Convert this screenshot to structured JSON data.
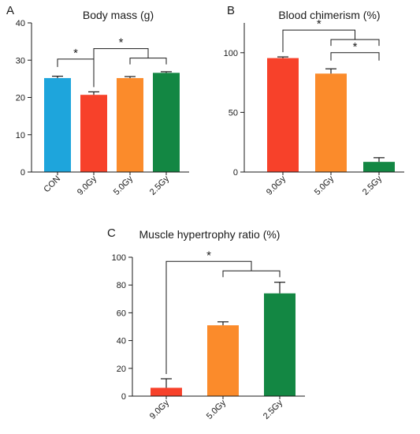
{
  "chart_data": [
    {
      "type": "bar",
      "panel": "A",
      "title": "Body mass (g)",
      "categories": [
        "CON",
        "9.0Gy",
        "5.0Gy",
        "2.5Gy"
      ],
      "values": [
        25.2,
        20.7,
        25.2,
        26.6
      ],
      "errors": [
        0.5,
        0.8,
        0.4,
        0.3
      ],
      "colors": [
        "#1ea5dc",
        "#f7412a",
        "#fb8b2b",
        "#138743"
      ],
      "ylim": [
        0,
        40
      ],
      "yticks": [
        0,
        10,
        20,
        30,
        40
      ],
      "significance": [
        {
          "label": "*",
          "from": [
            0
          ],
          "to": [
            1
          ],
          "y": 30.3
        },
        {
          "label": "*",
          "from": [
            1
          ],
          "to": [
            2,
            3
          ],
          "y": 33.1
        }
      ]
    },
    {
      "type": "bar",
      "panel": "B",
      "title": "Blood chimerism (%)",
      "categories": [
        "9.0Gy",
        "5.0Gy",
        "2.5Gy"
      ],
      "values": [
        95.5,
        82.5,
        8.5
      ],
      "errors": [
        1.0,
        4.0,
        3.5
      ],
      "colors": [
        "#f7412a",
        "#fb8b2b",
        "#138743"
      ],
      "ylim": [
        0,
        125
      ],
      "yticks": [
        0,
        50,
        100
      ],
      "significance": [
        {
          "label": "*",
          "from": [
            0
          ],
          "to": [
            1,
            2
          ],
          "y": 119
        },
        {
          "label": "*",
          "from": [
            1
          ],
          "to": [
            2
          ],
          "y": 100
        }
      ]
    },
    {
      "type": "bar",
      "panel": "C",
      "title": "Muscle hypertrophy ratio (%)",
      "categories": [
        "9.0Gy",
        "5.0Gy",
        "2.5Gy"
      ],
      "values": [
        6,
        51,
        74
      ],
      "errors": [
        6.5,
        2.5,
        8.0
      ],
      "colors": [
        "#f7412a",
        "#fb8b2b",
        "#138743"
      ],
      "ylim": [
        0,
        100
      ],
      "yticks": [
        0,
        20,
        40,
        60,
        80,
        100
      ],
      "significance": [
        {
          "label": "*",
          "from": [
            0
          ],
          "to": [
            1,
            2
          ],
          "y": 97
        }
      ]
    }
  ]
}
